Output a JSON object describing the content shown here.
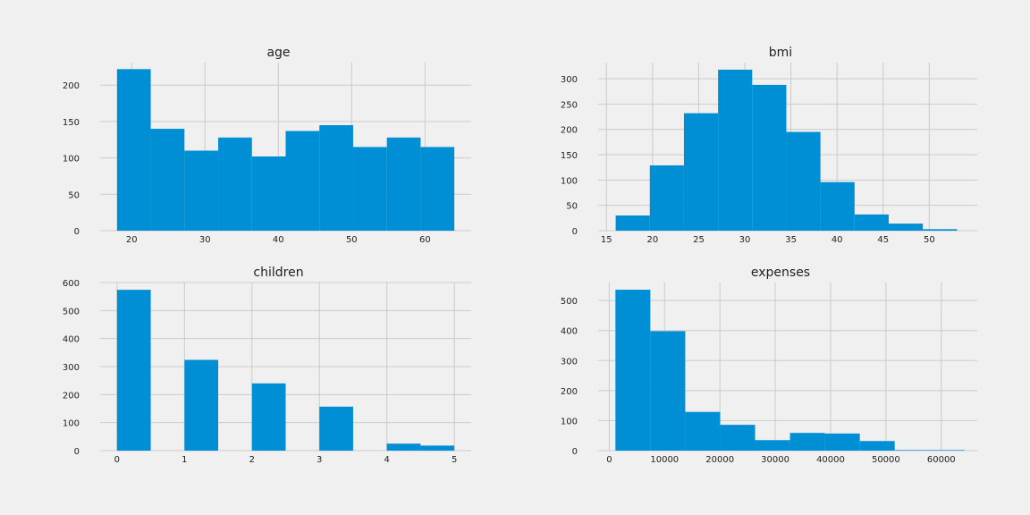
{
  "chart_data": [
    {
      "type": "bar",
      "title": "age",
      "xlabel": "",
      "ylabel": "",
      "bar_color": "#008fd5",
      "xlim": [
        15.7,
        66.3
      ],
      "ylim": [
        0,
        231
      ],
      "xticks": [
        20,
        30,
        40,
        50,
        60
      ],
      "yticks": [
        0,
        50,
        100,
        150,
        200
      ],
      "bins": [
        {
          "x0": 18.0,
          "x1": 22.6,
          "count": 222
        },
        {
          "x0": 22.6,
          "x1": 27.2,
          "count": 140
        },
        {
          "x0": 27.2,
          "x1": 31.8,
          "count": 110
        },
        {
          "x0": 31.8,
          "x1": 36.4,
          "count": 128
        },
        {
          "x0": 36.4,
          "x1": 41.0,
          "count": 102
        },
        {
          "x0": 41.0,
          "x1": 45.6,
          "count": 137
        },
        {
          "x0": 45.6,
          "x1": 50.2,
          "count": 145
        },
        {
          "x0": 50.2,
          "x1": 54.8,
          "count": 115
        },
        {
          "x0": 54.8,
          "x1": 59.4,
          "count": 128
        },
        {
          "x0": 59.4,
          "x1": 64.0,
          "count": 115
        }
      ]
    },
    {
      "type": "bar",
      "title": "bmi",
      "xlabel": "",
      "ylabel": "",
      "bar_color": "#008fd5",
      "xlim": [
        14.1,
        55.2
      ],
      "ylim": [
        0,
        332
      ],
      "xticks": [
        15,
        20,
        25,
        30,
        35,
        40,
        45,
        50
      ],
      "yticks": [
        0,
        50,
        100,
        150,
        200,
        250,
        300
      ],
      "bins": [
        {
          "x0": 16.0,
          "x1": 19.7,
          "count": 30
        },
        {
          "x0": 19.7,
          "x1": 23.4,
          "count": 129
        },
        {
          "x0": 23.4,
          "x1": 27.1,
          "count": 232
        },
        {
          "x0": 27.1,
          "x1": 30.8,
          "count": 318
        },
        {
          "x0": 30.8,
          "x1": 34.5,
          "count": 288
        },
        {
          "x0": 34.5,
          "x1": 38.2,
          "count": 195
        },
        {
          "x0": 38.2,
          "x1": 41.9,
          "count": 96
        },
        {
          "x0": 41.9,
          "x1": 45.6,
          "count": 32
        },
        {
          "x0": 45.6,
          "x1": 49.3,
          "count": 14
        },
        {
          "x0": 49.3,
          "x1": 53.0,
          "count": 3
        }
      ]
    },
    {
      "type": "bar",
      "title": "children",
      "xlabel": "",
      "ylabel": "",
      "bar_color": "#008fd5",
      "xlim": [
        -0.25,
        5.25
      ],
      "ylim": [
        0,
        600
      ],
      "xticks": [
        0,
        1,
        2,
        3,
        4,
        5
      ],
      "yticks": [
        0,
        100,
        200,
        300,
        400,
        500,
        600
      ],
      "bins": [
        {
          "x0": 0.0,
          "x1": 0.5,
          "count": 574
        },
        {
          "x0": 0.5,
          "x1": 1.0,
          "count": 0
        },
        {
          "x0": 1.0,
          "x1": 1.5,
          "count": 324
        },
        {
          "x0": 1.5,
          "x1": 2.0,
          "count": 0
        },
        {
          "x0": 2.0,
          "x1": 2.5,
          "count": 240
        },
        {
          "x0": 2.5,
          "x1": 3.0,
          "count": 0
        },
        {
          "x0": 3.0,
          "x1": 3.5,
          "count": 157
        },
        {
          "x0": 3.5,
          "x1": 4.0,
          "count": 0
        },
        {
          "x0": 4.0,
          "x1": 4.5,
          "count": 25
        },
        {
          "x0": 4.5,
          "x1": 5.0,
          "count": 18
        }
      ]
    },
    {
      "type": "bar",
      "title": "expenses",
      "xlabel": "",
      "ylabel": "",
      "bar_color": "#008fd5",
      "xlim": [
        -2000,
        66500
      ],
      "ylim": [
        0,
        560
      ],
      "xticks": [
        0,
        10000,
        20000,
        30000,
        40000,
        50000,
        60000
      ],
      "yticks": [
        0,
        100,
        200,
        300,
        400,
        500
      ],
      "bins": [
        {
          "x0": 1120,
          "x1": 7429,
          "count": 536
        },
        {
          "x0": 7429,
          "x1": 13737,
          "count": 398
        },
        {
          "x0": 13737,
          "x1": 20046,
          "count": 129
        },
        {
          "x0": 20046,
          "x1": 26354,
          "count": 86
        },
        {
          "x0": 26354,
          "x1": 32663,
          "count": 35
        },
        {
          "x0": 32663,
          "x1": 38971,
          "count": 59
        },
        {
          "x0": 38971,
          "x1": 45280,
          "count": 57
        },
        {
          "x0": 45280,
          "x1": 51588,
          "count": 32
        },
        {
          "x0": 51588,
          "x1": 57897,
          "count": 2
        },
        {
          "x0": 57897,
          "x1": 64205,
          "count": 2
        }
      ]
    }
  ]
}
